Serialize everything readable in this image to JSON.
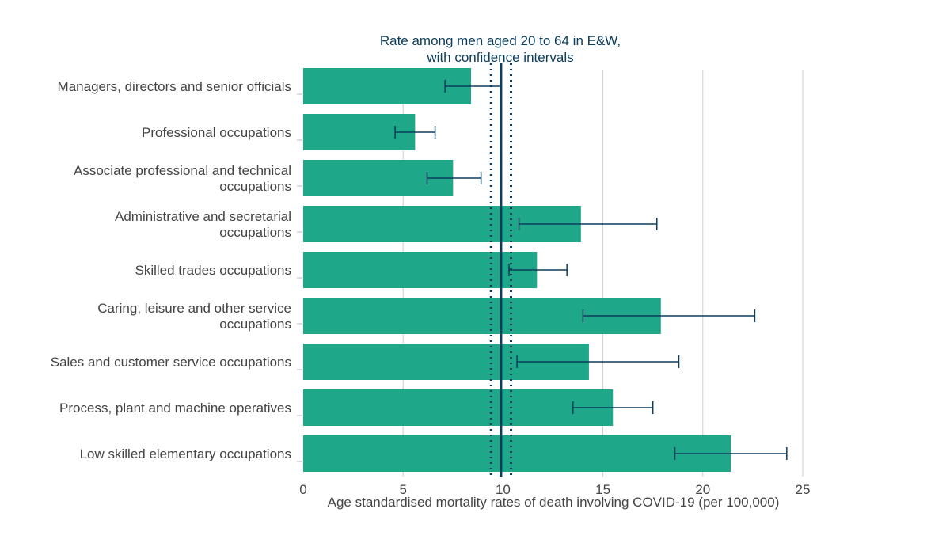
{
  "chart_data": {
    "type": "bar",
    "orientation": "horizontal",
    "categories": [
      [
        "Managers, directors and senior officials"
      ],
      [
        "Professional occupations"
      ],
      [
        "Associate professional and technical",
        "occupations"
      ],
      [
        "Administrative and secretarial",
        "occupations"
      ],
      [
        "Skilled trades occupations"
      ],
      [
        "Caring, leisure and other service",
        "occupations"
      ],
      [
        "Sales and customer service occupations"
      ],
      [
        "Process, plant and machine operatives"
      ],
      [
        "Low skilled elementary occupations"
      ]
    ],
    "values": [
      8.4,
      5.6,
      7.5,
      13.9,
      11.7,
      17.9,
      14.3,
      15.5,
      21.4
    ],
    "ci_lower": [
      7.1,
      4.6,
      6.2,
      10.8,
      10.3,
      14.0,
      10.7,
      13.5,
      18.6
    ],
    "ci_upper": [
      9.9,
      6.6,
      8.9,
      17.7,
      13.2,
      22.6,
      18.8,
      17.5,
      24.2
    ],
    "xlabel": "Age standardised mortality rates of death involving COVID-19 (per 100,000)",
    "xlim": [
      0,
      25
    ],
    "xticks": [
      0,
      5,
      10,
      15,
      20,
      25
    ],
    "grid": "vertical",
    "reference_line": {
      "value": 9.9,
      "ci_lower": 9.4,
      "ci_upper": 10.4,
      "label_lines": [
        "Rate among men aged 20 to 64 in E&W,",
        "with confidence intervals"
      ]
    },
    "colors": {
      "bar": "#1fa78a",
      "error_bar": "#0b3d5c",
      "reference": "#0b3d5c",
      "grid": "#cccccc"
    }
  }
}
